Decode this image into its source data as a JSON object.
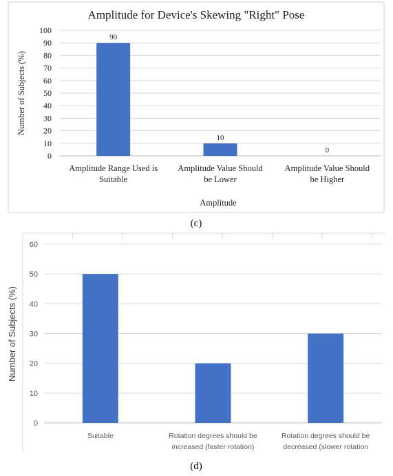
{
  "chart_data": [
    {
      "type": "bar",
      "title": "Amplitude for Device's Skewing \"Right\" Pose",
      "xlabel": "Amplitude",
      "ylabel": "Number of Subjects (%)",
      "categories": [
        [
          "Amplitude Range Used is",
          "Suitable"
        ],
        [
          "Amplitude Value Should",
          "be Lower"
        ],
        [
          "Amplitude Value Should",
          "be Higher"
        ]
      ],
      "values": [
        90,
        10,
        0
      ],
      "data_labels": [
        "90",
        "10",
        "0"
      ],
      "ylim": [
        0,
        100
      ],
      "yticks": [
        0,
        10,
        20,
        30,
        40,
        50,
        60,
        70,
        80,
        90,
        100
      ],
      "grid": true,
      "bar_color": "#4472c4",
      "caption": "(c)"
    },
    {
      "type": "bar",
      "title": "",
      "xlabel": "",
      "ylabel": "Number of Subjects (%)",
      "categories": [
        [
          "Suitable"
        ],
        [
          "Rotation degrees should be",
          "increased (faster rotation)"
        ],
        [
          "Rotation degrees should be",
          "decreased (slower rotation"
        ]
      ],
      "values": [
        50,
        20,
        30
      ],
      "ylim": [
        0,
        60
      ],
      "yticks": [
        0,
        10,
        20,
        30,
        40,
        50,
        60
      ],
      "grid": true,
      "bar_color": "#4472c4",
      "caption": "(d)"
    }
  ]
}
